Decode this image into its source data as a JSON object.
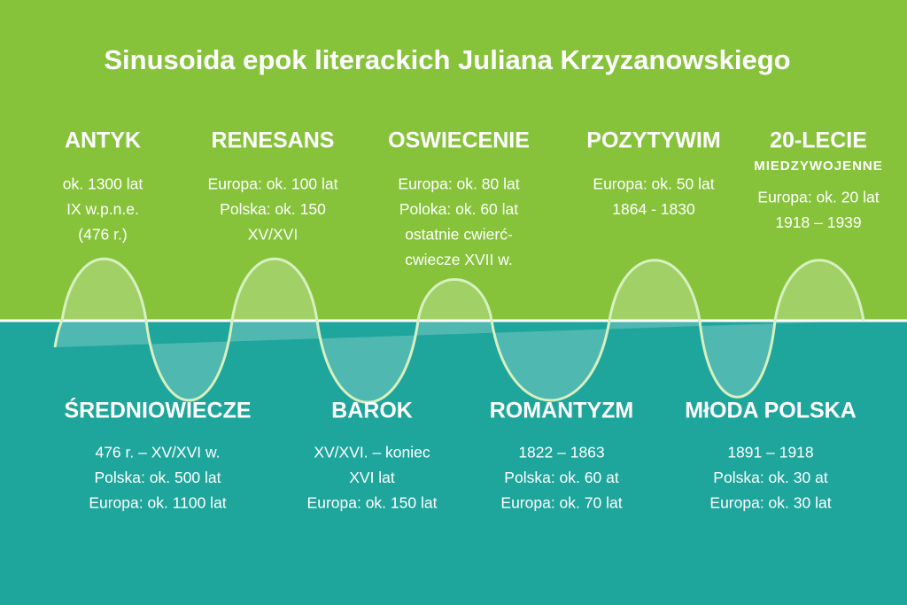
{
  "title": "Sinusoida epok literackich Juliana Krzyzanowskiego",
  "upper_epochs": [
    {
      "name": "ANTYK",
      "lines": [
        "ok. 1300 lat",
        "IX w.p.n.e.",
        "(476 r.)"
      ]
    },
    {
      "name": "RENESANS",
      "lines": [
        "Europa: ok. 100 lat",
        "Polska: ok. 150",
        "XV/XVI"
      ]
    },
    {
      "name": "OSWIECENIE",
      "lines": [
        "Europa: ok. 80 lat",
        "Poloka: ok. 60 lat",
        "ostatnie cwierć-",
        "cwiecze XVII w."
      ]
    },
    {
      "name": "POZYTYWIM",
      "lines": [
        "Europa: ok. 50 lat",
        "1864 - 1830"
      ]
    },
    {
      "name": "20-LECIE",
      "subtitle": "MIEDZYWOJENNE",
      "lines": [
        "Europa: ok. 20 lat",
        "1918 – 1939"
      ]
    }
  ],
  "lower_epochs": [
    {
      "name": "ŚREDNIOWIECZE",
      "lines": [
        "476 r. – XV/XVI w.",
        "Polska: ok. 500 lat",
        "Europa: ok. 1100 lat"
      ]
    },
    {
      "name": "BAROK",
      "lines": [
        "XV/XVI. – koniec",
        "XVI lat",
        "Europa: ok. 150 lat"
      ]
    },
    {
      "name": "ROMANTYZM",
      "lines": [
        "1822 – 1863",
        "Polska: ok. 60 at",
        "Europa: ok. 70 lat"
      ]
    },
    {
      "name": "MłODA POLSKA",
      "lines": [
        "1891 – 1918",
        "Polska: ok. 30 at",
        "Europa: ok. 30 lat"
      ]
    }
  ]
}
